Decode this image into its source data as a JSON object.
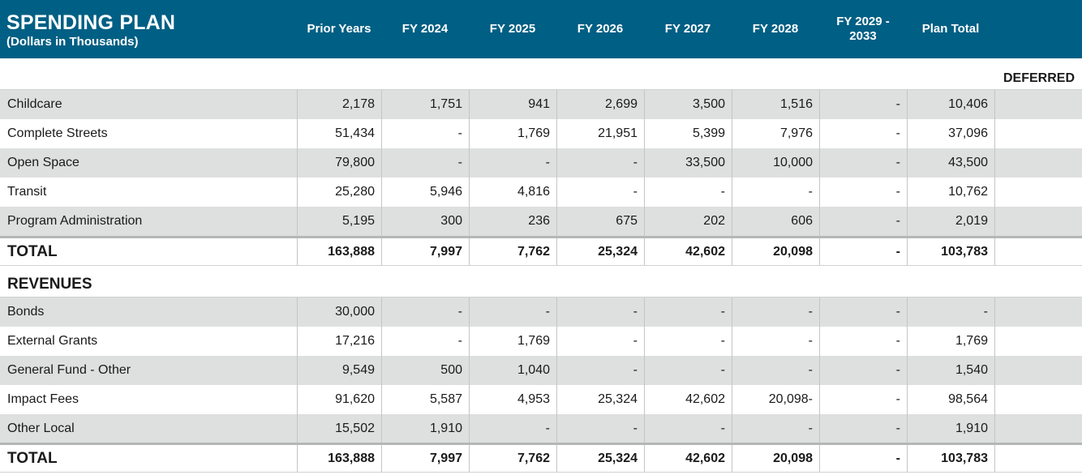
{
  "header": {
    "title": "SPENDING PLAN",
    "subtitle": "(Dollars in Thousands)",
    "columns": [
      "Prior Years",
      "FY 2024",
      "FY 2025",
      "FY 2026",
      "FY 2027",
      "FY 2028",
      "FY 2029 -\n2033",
      "Plan Total"
    ]
  },
  "deferred_label": "DEFERRED",
  "spending": {
    "rows": [
      {
        "label": "Childcare",
        "values": [
          "2,178",
          "1,751",
          "941",
          "2,699",
          "3,500",
          "1,516",
          "-",
          "10,406",
          ""
        ]
      },
      {
        "label": "Complete Streets",
        "values": [
          "51,434",
          "-",
          "1,769",
          "21,951",
          "5,399",
          "7,976",
          "-",
          "37,096",
          ""
        ]
      },
      {
        "label": "Open Space",
        "values": [
          "79,800",
          "-",
          "-",
          "-",
          "33,500",
          "10,000",
          "-",
          "43,500",
          ""
        ]
      },
      {
        "label": "Transit",
        "values": [
          "25,280",
          "5,946",
          "4,816",
          "-",
          "-",
          "-",
          "-",
          "10,762",
          ""
        ]
      },
      {
        "label": "Program Administration",
        "values": [
          "5,195",
          "300",
          "236",
          "675",
          "202",
          "606",
          "-",
          "2,019",
          ""
        ]
      }
    ],
    "total": {
      "label": "TOTAL",
      "values": [
        "163,888",
        "7,997",
        "7,762",
        "25,324",
        "42,602",
        "20,098",
        "-",
        "103,783",
        ""
      ]
    }
  },
  "revenues": {
    "heading": "REVENUES",
    "rows": [
      {
        "label": "Bonds",
        "values": [
          "30,000",
          "-",
          "-",
          "-",
          "-",
          "-",
          "-",
          "-",
          ""
        ]
      },
      {
        "label": "External Grants",
        "values": [
          "17,216",
          "-",
          "1,769",
          "-",
          "-",
          "-",
          "-",
          "1,769",
          ""
        ]
      },
      {
        "label": "General Fund - Other",
        "values": [
          "9,549",
          "500",
          "1,040",
          "-",
          "-",
          "-",
          "-",
          "1,540",
          ""
        ]
      },
      {
        "label": "Impact Fees",
        "values": [
          "91,620",
          "5,587",
          "4,953",
          "25,324",
          "42,602",
          "20,098-",
          "-",
          "98,564",
          ""
        ]
      },
      {
        "label": "Other Local",
        "values": [
          "15,502",
          "1,910",
          "-",
          "-",
          "-",
          "-",
          "-",
          "1,910",
          ""
        ]
      }
    ],
    "total": {
      "label": "TOTAL",
      "values": [
        "163,888",
        "7,997",
        "7,762",
        "25,324",
        "42,602",
        "20,098",
        "-",
        "103,783",
        ""
      ]
    }
  }
}
